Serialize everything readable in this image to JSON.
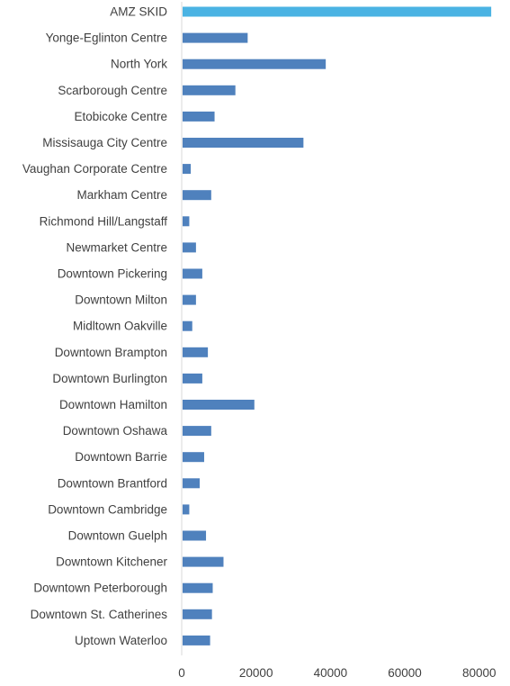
{
  "chart_data": {
    "type": "bar",
    "orientation": "horizontal",
    "title": "",
    "xlabel": "",
    "ylabel": "",
    "xlim": [
      0,
      85000
    ],
    "x_ticks": [
      0,
      20000,
      40000,
      60000,
      80000
    ],
    "grid": false,
    "legend": "none",
    "highlight_color": "#4ab3e3",
    "bar_color": "#4f81bd",
    "categories": [
      "AMZ SKID",
      "Yonge-Eglinton Centre",
      "North York",
      "Scarborough Centre",
      "Etobicoke Centre",
      "Missisauga City Centre",
      "Vaughan Corporate Centre",
      "Markham Centre",
      "Richmond Hill/Langstaff",
      "Newmarket Centre",
      "Downtown Pickering",
      "Downtown Milton",
      "Midltown Oakville",
      "Downtown Brampton",
      "Downtown Burlington",
      "Downtown Hamilton",
      "Downtown Oshawa",
      "Downtown Barrie",
      "Downtown Brantford",
      "Downtown Cambridge",
      "Downtown Guelph",
      "Downtown Kitchener",
      "Downtown Peterborough",
      "Downtown St. Catherines",
      "Uptown Waterloo"
    ],
    "values": [
      83000,
      17500,
      38500,
      14200,
      8600,
      32500,
      2200,
      7700,
      1800,
      3600,
      5300,
      3600,
      2600,
      6800,
      5300,
      19300,
      7700,
      5800,
      4600,
      1800,
      6300,
      11000,
      8100,
      7900,
      7400
    ]
  }
}
